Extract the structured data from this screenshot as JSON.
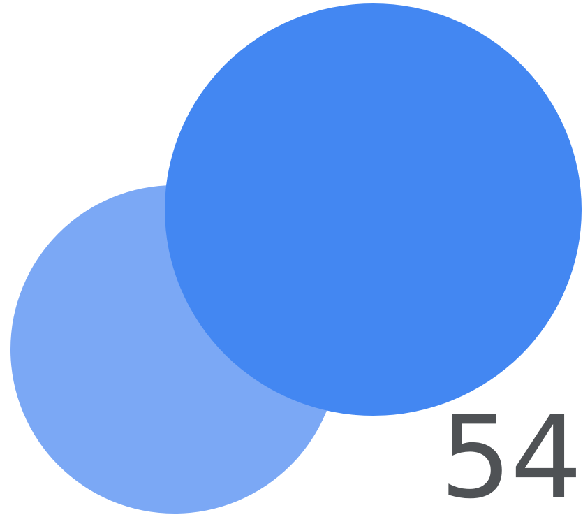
{
  "logo": {
    "count_text": "54",
    "colors": {
      "back_circle": "#7BA8F5",
      "front_circle": "#4387F2",
      "count_text": "#4F5255"
    }
  }
}
